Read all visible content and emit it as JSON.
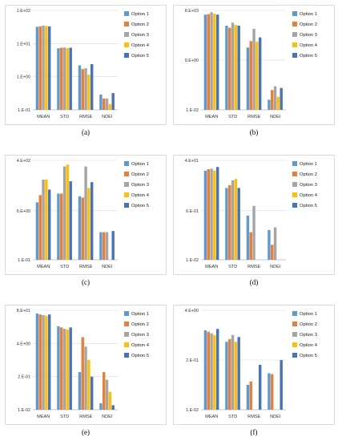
{
  "series_colors": [
    "#5b9bd5",
    "#ed7d31",
    "#a5a5a5",
    "#ffc000",
    "#4472c4"
  ],
  "chart_data": [
    {
      "type": "bar",
      "caption": "(a)",
      "log_scale": true,
      "grid": true,
      "legend": "right",
      "categories": [
        "MEAN",
        "STD",
        "RMSE",
        "NDEI"
      ],
      "y_ticks": [
        "1.E+02",
        "1.E+01",
        "1.E+00",
        "1.E-01"
      ],
      "ylim": [
        0.1,
        100
      ],
      "series": [
        {
          "name": "Option 1",
          "values": [
            32,
            7.2,
            2.2,
            0.29
          ]
        },
        {
          "name": "Option 2",
          "values": [
            33,
            7.5,
            1.7,
            0.22
          ]
        },
        {
          "name": "Option 3",
          "values": [
            35,
            7.6,
            1.8,
            0.22
          ]
        },
        {
          "name": "Option 4",
          "values": [
            34,
            7.3,
            1.15,
            0.15
          ]
        },
        {
          "name": "Option 5",
          "values": [
            33,
            7.5,
            2.4,
            0.32
          ]
        }
      ]
    },
    {
      "type": "bar",
      "caption": "(b)",
      "log_scale": true,
      "grid": true,
      "legend": "right",
      "categories": [
        "MEAN",
        "STD",
        "RMSE",
        "NDEI"
      ],
      "y_ticks": [
        "8.E+03",
        "9.E+00",
        "1.E-02"
      ],
      "ylim": [
        0.01,
        8000
      ],
      "series": [
        {
          "name": "Option 1",
          "values": [
            4500,
            1000,
            50,
            0.04
          ]
        },
        {
          "name": "Option 2",
          "values": [
            4800,
            750,
            120,
            0.15
          ]
        },
        {
          "name": "Option 3",
          "values": [
            6200,
            1500,
            650,
            0.25
          ]
        },
        {
          "name": "Option 4",
          "values": [
            5000,
            1100,
            110,
            0.06
          ]
        },
        {
          "name": "Option 5",
          "values": [
            4500,
            1000,
            200,
            0.2
          ]
        }
      ]
    },
    {
      "type": "bar",
      "caption": "(c)",
      "log_scale": true,
      "grid": true,
      "legend": "right",
      "categories": [
        "MEAN",
        "STD",
        "RMSE",
        "NDEI"
      ],
      "y_ticks": [
        "4.E+02",
        "6.E+00",
        "1.E-01"
      ],
      "ylim": [
        0.1,
        400
      ],
      "series": [
        {
          "name": "Option 1",
          "values": [
            12,
            25,
            20,
            1
          ]
        },
        {
          "name": "Option 2",
          "values": [
            22,
            25,
            18,
            1
          ]
        },
        {
          "name": "Option 3",
          "values": [
            80,
            240,
            240,
            1
          ]
        },
        {
          "name": "Option 4",
          "values": [
            82,
            280,
            40,
            0.1
          ]
        },
        {
          "name": "Option 5",
          "values": [
            35,
            70,
            65,
            1.1
          ]
        }
      ]
    },
    {
      "type": "bar",
      "caption": "(d)",
      "log_scale": true,
      "grid": true,
      "legend": "right",
      "categories": [
        "MEAN",
        "STD",
        "RMSE",
        "NDEI"
      ],
      "y_ticks": [
        "4.E+01",
        "6.E-01",
        "1.E-02"
      ],
      "ylim": [
        0.01,
        40
      ],
      "series": [
        {
          "name": "Option 1",
          "values": [
            17,
            4,
            0.4,
            0.12
          ]
        },
        {
          "name": "Option 2",
          "values": [
            19,
            5,
            0.1,
            0.035
          ]
        },
        {
          "name": "Option 3",
          "values": [
            20,
            7.5,
            0.9,
            0.15
          ]
        },
        {
          "name": "Option 4",
          "values": [
            17,
            8.5,
            0.01,
            0.01
          ]
        },
        {
          "name": "Option 5",
          "values": [
            23,
            4,
            0.01,
            0.01
          ]
        }
      ]
    },
    {
      "type": "bar",
      "caption": "(e)",
      "log_scale": true,
      "grid": true,
      "legend": "right",
      "categories": [
        "MEAN",
        "STD",
        "RMSE",
        "NDEI"
      ],
      "y_ticks": [
        "8.E+01",
        "4.E+00",
        "2.E-01",
        "1.E-02"
      ],
      "ylim": [
        0.01,
        80
      ],
      "series": [
        {
          "name": "Option 1",
          "values": [
            60,
            19,
            0.3,
            0.018
          ]
        },
        {
          "name": "Option 2",
          "values": [
            55,
            17,
            7,
            0.3
          ]
        },
        {
          "name": "Option 3",
          "values": [
            52,
            15,
            3,
            0.15
          ]
        },
        {
          "name": "Option 4",
          "values": [
            48,
            14,
            0.9,
            0.05
          ]
        },
        {
          "name": "Option 5",
          "values": [
            55,
            17,
            0.2,
            0.015
          ]
        }
      ]
    },
    {
      "type": "bar",
      "caption": "(f)",
      "log_scale": true,
      "grid": true,
      "legend": "right",
      "categories": [
        "MEAN",
        "STD",
        "RMSE",
        "NDEI"
      ],
      "y_ticks": [
        "4.E+00",
        "2.E-01",
        "1.E-02"
      ],
      "ylim": [
        0.01,
        4
      ],
      "series": [
        {
          "name": "Option 1",
          "values": [
            1.2,
            0.6,
            0.045,
            0.09
          ]
        },
        {
          "name": "Option 2",
          "values": [
            1.1,
            0.7,
            0.055,
            0.085
          ]
        },
        {
          "name": "Option 3",
          "values": [
            1.0,
            0.9,
            0.01,
            0.01
          ]
        },
        {
          "name": "Option 4",
          "values": [
            0.9,
            0.6,
            0.01,
            0.01
          ]
        },
        {
          "name": "Option 5",
          "values": [
            1.3,
            0.8,
            0.15,
            0.2
          ]
        }
      ]
    }
  ]
}
